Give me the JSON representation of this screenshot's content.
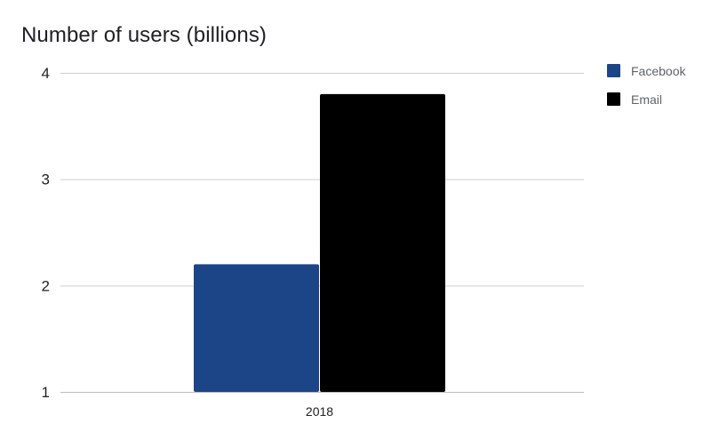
{
  "chart_data": {
    "type": "bar",
    "title": "Number of users (billions)",
    "xlabel": "",
    "ylabel": "",
    "categories": [
      "2018"
    ],
    "series": [
      {
        "name": "Facebook",
        "values": [
          2.2
        ],
        "color": "#1c4587"
      },
      {
        "name": "Email",
        "values": [
          3.8
        ],
        "color": "#000000"
      }
    ],
    "ylim": [
      1,
      4
    ],
    "yticks": [
      1,
      2,
      3,
      4
    ],
    "grid": true,
    "legend": "right"
  }
}
